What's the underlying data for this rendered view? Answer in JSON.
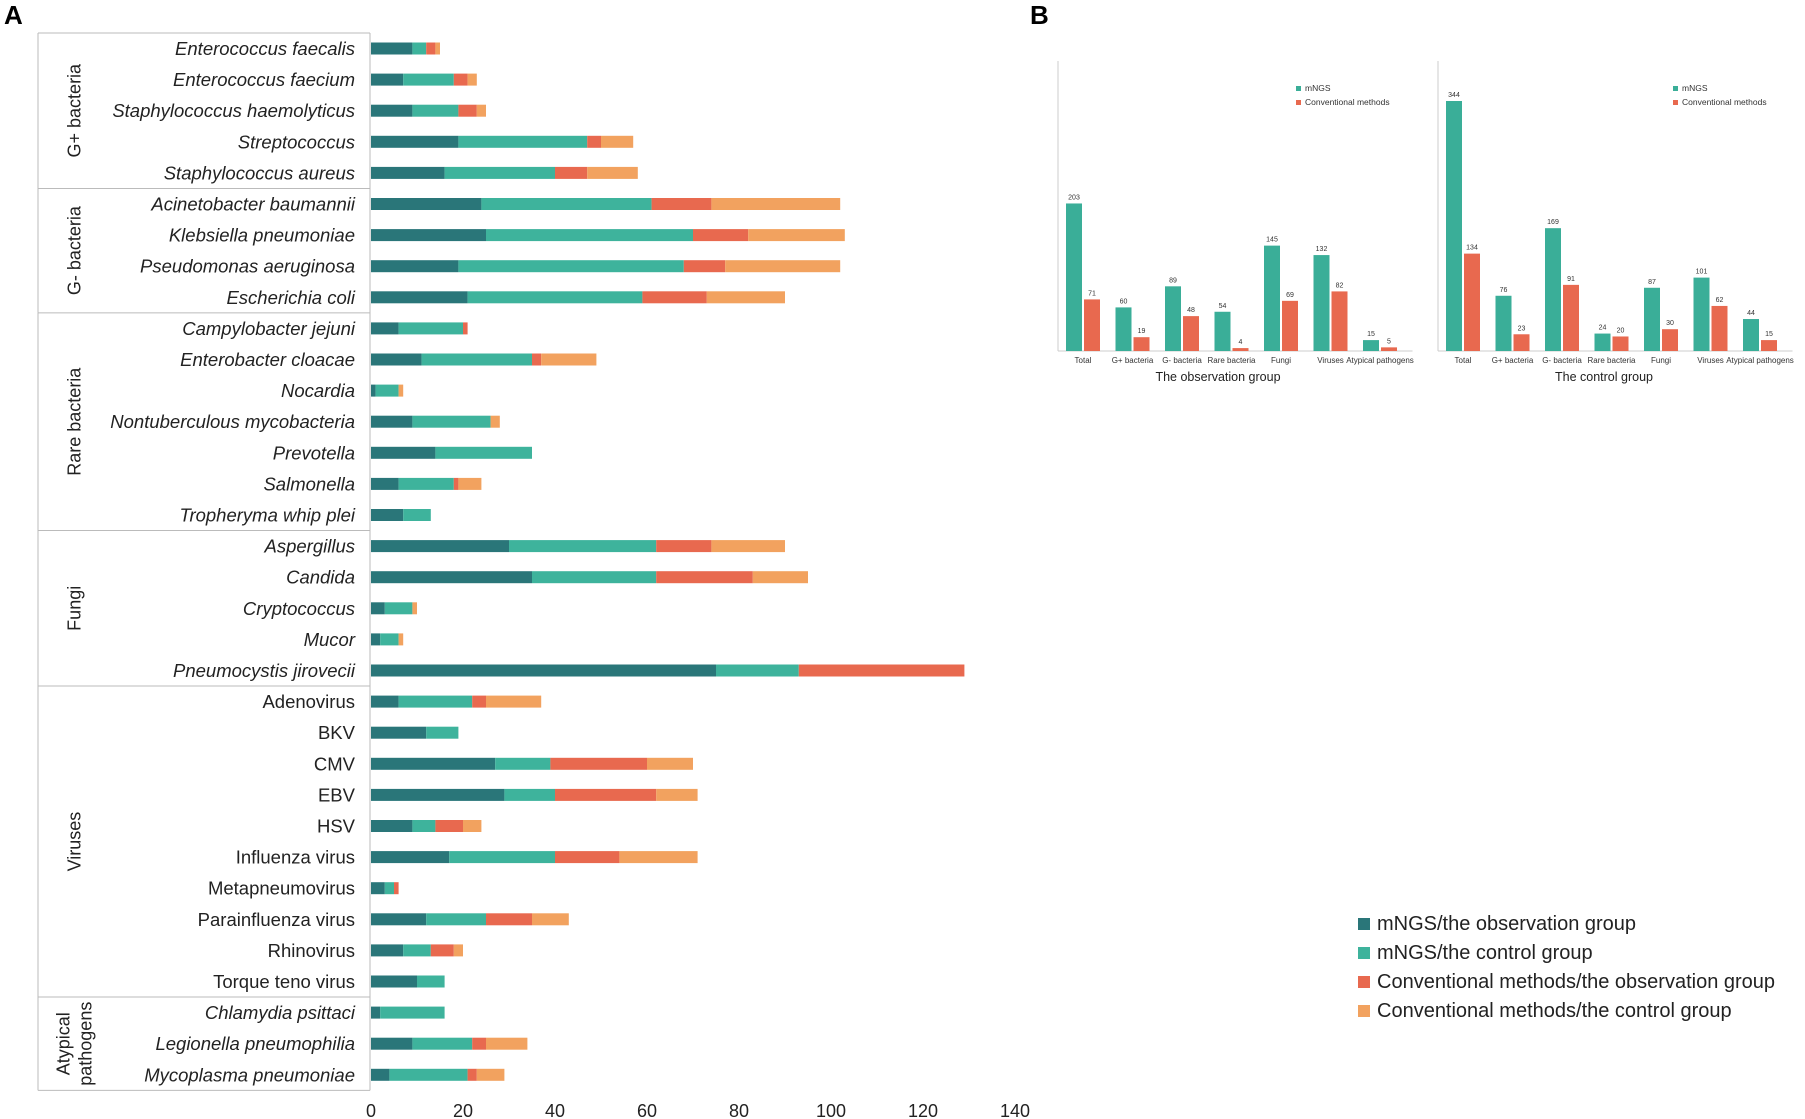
{
  "panels": {
    "a": "A",
    "b": "B"
  },
  "colors": {
    "mngs_obs": "#2a7679",
    "mngs_ctrl": "#3eb39c",
    "conv_obs": "#e8694f",
    "conv_ctrl": "#f2a25f",
    "mngs_b": "#3aae98",
    "conv_b": "#e8694f"
  },
  "chart_data": [
    {
      "type": "bar",
      "orientation": "horizontal",
      "stacked": true,
      "title": "",
      "xlabel": "",
      "ylabel": "",
      "xlim": [
        0,
        140
      ],
      "xticks": [
        0,
        20,
        40,
        60,
        80,
        100,
        120,
        140
      ],
      "grid": false,
      "legend": [
        "mNGS/the observation group",
        "mNGS/the control group",
        "Conventional methods/the observation group",
        "Conventional methods/the control group"
      ],
      "legend_position": "bottom-right",
      "groups": [
        {
          "name": "G+ bacteria",
          "lines": [
            "G+ bacteria"
          ],
          "start": 0,
          "end": 4
        },
        {
          "name": "G- bacteria",
          "lines": [
            "G- bacteria"
          ],
          "start": 5,
          "end": 8
        },
        {
          "name": "Rare bacteria",
          "lines": [
            "Rare bacteria"
          ],
          "start": 9,
          "end": 15
        },
        {
          "name": "Fungi",
          "lines": [
            "Fungi"
          ],
          "start": 16,
          "end": 20
        },
        {
          "name": "Viruses",
          "lines": [
            "Viruses"
          ],
          "start": 21,
          "end": 30
        },
        {
          "name": "Atypical pathogens",
          "lines": [
            "Atypical",
            "pathogens"
          ],
          "start": 31,
          "end": 33
        }
      ],
      "categories": [
        {
          "name": "Enterococcus faecalis",
          "italic": true
        },
        {
          "name": "Enterococcus faecium",
          "italic": true
        },
        {
          "name": "Staphylococcus haemolyticus",
          "italic": true
        },
        {
          "name": "Streptococcus",
          "italic": true
        },
        {
          "name": "Staphylococcus aureus",
          "italic": true
        },
        {
          "name": "Acinetobacter baumannii",
          "italic": true
        },
        {
          "name": "Klebsiella pneumoniae",
          "italic": true
        },
        {
          "name": "Pseudomonas aeruginosa",
          "italic": true
        },
        {
          "name": "Escherichia coli",
          "italic": true
        },
        {
          "name": "Campylobacter jejuni",
          "italic": true
        },
        {
          "name": "Enterobacter cloacae",
          "italic": true
        },
        {
          "name": "Nocardia",
          "italic": true
        },
        {
          "name": "Nontuberculous mycobacteria",
          "italic": true
        },
        {
          "name": "Prevotella",
          "italic": true
        },
        {
          "name": "Salmonella",
          "italic": true
        },
        {
          "name": "Tropheryma whip plei",
          "italic": true
        },
        {
          "name": "Aspergillus",
          "italic": true
        },
        {
          "name": "Candida",
          "italic": true
        },
        {
          "name": "Cryptococcus",
          "italic": true
        },
        {
          "name": "Mucor",
          "italic": true
        },
        {
          "name": "Pneumocystis jirovecii",
          "italic": true
        },
        {
          "name": "Adenovirus",
          "italic": false
        },
        {
          "name": "BKV",
          "italic": false
        },
        {
          "name": "CMV",
          "italic": false
        },
        {
          "name": "EBV",
          "italic": false
        },
        {
          "name": "HSV",
          "italic": false
        },
        {
          "name": "Influenza virus",
          "italic": false
        },
        {
          "name": "Metapneumovirus",
          "italic": false
        },
        {
          "name": "Parainfluenza virus",
          "italic": false
        },
        {
          "name": "Rhinovirus",
          "italic": false
        },
        {
          "name": "Torque teno virus",
          "italic": false
        },
        {
          "name": "Chlamydia psittaci",
          "italic": true
        },
        {
          "name": "Legionella pneumophilia",
          "italic": true
        },
        {
          "name": "Mycoplasma pneumoniae",
          "italic": true
        }
      ],
      "series": [
        {
          "name": "mNGS/the observation group",
          "color": "#2a7679",
          "values": [
            9,
            7,
            9,
            19,
            16,
            24,
            25,
            19,
            21,
            6,
            11,
            1,
            9,
            14,
            6,
            7,
            30,
            35,
            3,
            2,
            75,
            6,
            12,
            27,
            29,
            9,
            17,
            3,
            12,
            7,
            10,
            2,
            9,
            4
          ]
        },
        {
          "name": "mNGS/the control group",
          "color": "#3eb39c",
          "values": [
            3,
            11,
            10,
            28,
            24,
            37,
            45,
            49,
            38,
            14,
            24,
            5,
            17,
            21,
            12,
            6,
            32,
            27,
            6,
            4,
            18,
            16,
            7,
            12,
            11,
            5,
            23,
            2,
            13,
            6,
            6,
            14,
            13,
            17
          ]
        },
        {
          "name": "Conventional methods/the observation group",
          "color": "#e8694f",
          "values": [
            2,
            3,
            4,
            3,
            7,
            13,
            12,
            9,
            14,
            1,
            2,
            0,
            0,
            0,
            1,
            0,
            12,
            21,
            0,
            0,
            36,
            3,
            0,
            21,
            22,
            6,
            14,
            1,
            10,
            5,
            0,
            0,
            3,
            2
          ]
        },
        {
          "name": "Conventional methods/the control group",
          "color": "#f2a25f",
          "values": [
            1,
            2,
            2,
            7,
            11,
            28,
            21,
            25,
            17,
            0,
            12,
            1,
            2,
            0,
            5,
            0,
            16,
            12,
            1,
            1,
            0,
            12,
            0,
            10,
            9,
            4,
            17,
            0,
            8,
            2,
            0,
            0,
            9,
            6
          ]
        }
      ]
    },
    {
      "type": "bar",
      "title": "The observation group",
      "xlabel": "",
      "ylabel": "",
      "ylim": [
        0,
        344
      ],
      "grid": false,
      "legend": [
        "mNGS",
        "Conventional methods"
      ],
      "legend_position": "top-left",
      "categories": [
        "Total",
        "G+ bacteria",
        "G- bacteria",
        "Rare bacteria",
        "Fungi",
        "Viruses",
        "Atypical pathogens"
      ],
      "series": [
        {
          "name": "mNGS",
          "values": [
            203,
            60,
            89,
            54,
            145,
            132,
            15
          ]
        },
        {
          "name": "Conventional methods",
          "values": [
            71,
            19,
            48,
            4,
            69,
            82,
            5
          ]
        }
      ]
    },
    {
      "type": "bar",
      "title": "The control group",
      "xlabel": "",
      "ylabel": "",
      "ylim": [
        0,
        344
      ],
      "grid": false,
      "legend": [
        "mNGS",
        "Conventional methods"
      ],
      "legend_position": "top-right",
      "categories": [
        "Total",
        "G+ bacteria",
        "G- bacteria",
        "Rare bacteria",
        "Fungi",
        "Viruses",
        "Atypical pathogens"
      ],
      "series": [
        {
          "name": "mNGS",
          "values": [
            344,
            76,
            169,
            24,
            87,
            101,
            44
          ]
        },
        {
          "name": "Conventional methods",
          "values": [
            134,
            23,
            91,
            20,
            30,
            62,
            15
          ]
        }
      ]
    }
  ]
}
